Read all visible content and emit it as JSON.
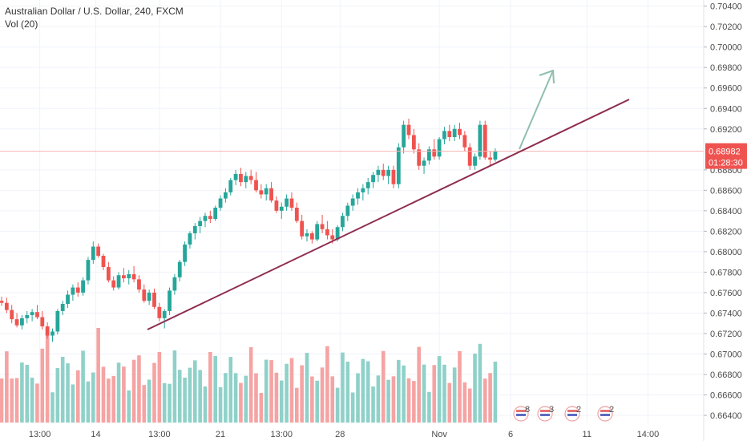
{
  "legend": {
    "symbol_title": "Australian Dollar / U.S. Dollar, 240, FXCM",
    "volume_title": "Vol (20)"
  },
  "price_tag": {
    "price": "0.68982",
    "countdown": "01:28:30",
    "color": "#ef5350"
  },
  "colors": {
    "up": "#26a69a",
    "down": "#ef5350",
    "vol_up": "#8fd1c9",
    "vol_down": "#f5a3a3",
    "trendline": "#8e2d4f",
    "arrow": "#8fbfae",
    "grid": "#f0f3fa",
    "price_line": "#f5b5b5"
  },
  "chart_data": {
    "type": "candlestick",
    "title": "Australian Dollar / U.S. Dollar, 240, FXCM",
    "volume_indicator": "Vol (20)",
    "y_axis": {
      "ticks": [
        "0.70400",
        "0.70200",
        "0.70000",
        "0.69800",
        "0.69600",
        "0.69400",
        "0.69200",
        "0.68800",
        "0.68600",
        "0.68400",
        "0.68200",
        "0.68000",
        "0.67800",
        "0.67600",
        "0.67400",
        "0.67200",
        "0.67000",
        "0.66800",
        "0.66600",
        "0.66400"
      ],
      "range": [
        0.6633,
        0.7046
      ],
      "position": "right"
    },
    "x_axis": {
      "ticks": [
        "13:00",
        "14",
        "13:00",
        "21",
        "13:00",
        "28",
        "Nov",
        "6",
        "11",
        "14:00"
      ],
      "bar_range": [
        0,
        140
      ]
    },
    "grid": true,
    "last_price": 0.68982,
    "candles": [
      [
        0.6752,
        0.6756,
        0.6747,
        0.675
      ],
      [
        0.675,
        0.6755,
        0.674,
        0.6743
      ],
      [
        0.6743,
        0.6748,
        0.673,
        0.6734
      ],
      [
        0.6734,
        0.674,
        0.6726,
        0.6728
      ],
      [
        0.6728,
        0.6738,
        0.6724,
        0.6735
      ],
      [
        0.6735,
        0.6742,
        0.673,
        0.6738
      ],
      [
        0.6738,
        0.6744,
        0.6732,
        0.6741
      ],
      [
        0.6741,
        0.6748,
        0.6734,
        0.6736
      ],
      [
        0.6736,
        0.6742,
        0.6724,
        0.6727
      ],
      [
        0.6727,
        0.6731,
        0.6715,
        0.6718
      ],
      [
        0.6718,
        0.6725,
        0.6712,
        0.6722
      ],
      [
        0.6722,
        0.6744,
        0.6719,
        0.6742
      ],
      [
        0.6742,
        0.6752,
        0.6738,
        0.6749
      ],
      [
        0.6749,
        0.6762,
        0.6745,
        0.6758
      ],
      [
        0.6758,
        0.6768,
        0.6752,
        0.6765
      ],
      [
        0.6765,
        0.677,
        0.6756,
        0.676
      ],
      [
        0.676,
        0.6775,
        0.6757,
        0.6772
      ],
      [
        0.6772,
        0.6795,
        0.6768,
        0.6792
      ],
      [
        0.6792,
        0.681,
        0.6788,
        0.6805
      ],
      [
        0.6805,
        0.6808,
        0.6794,
        0.6796
      ],
      [
        0.6796,
        0.6798,
        0.6782,
        0.6785
      ],
      [
        0.6785,
        0.679,
        0.677,
        0.6772
      ],
      [
        0.6772,
        0.6776,
        0.6762,
        0.6765
      ],
      [
        0.6765,
        0.678,
        0.6763,
        0.6777
      ],
      [
        0.6777,
        0.6784,
        0.677,
        0.6774
      ],
      [
        0.6774,
        0.6782,
        0.6768,
        0.6778
      ],
      [
        0.6778,
        0.6786,
        0.677,
        0.6773
      ],
      [
        0.6773,
        0.6777,
        0.676,
        0.6763
      ],
      [
        0.6763,
        0.6768,
        0.675,
        0.6752
      ],
      [
        0.6752,
        0.6763,
        0.6748,
        0.676
      ],
      [
        0.676,
        0.6764,
        0.6744,
        0.6746
      ],
      [
        0.6746,
        0.675,
        0.6732,
        0.6735
      ],
      [
        0.6735,
        0.6744,
        0.6725,
        0.6742
      ],
      [
        0.6742,
        0.6765,
        0.6738,
        0.6762
      ],
      [
        0.6762,
        0.6778,
        0.6758,
        0.6775
      ],
      [
        0.6775,
        0.6792,
        0.6771,
        0.679
      ],
      [
        0.679,
        0.681,
        0.6786,
        0.6807
      ],
      [
        0.6807,
        0.682,
        0.6803,
        0.6818
      ],
      [
        0.6818,
        0.6828,
        0.6812,
        0.6825
      ],
      [
        0.6825,
        0.6834,
        0.6818,
        0.683
      ],
      [
        0.683,
        0.6838,
        0.6824,
        0.6835
      ],
      [
        0.6835,
        0.684,
        0.6828,
        0.6832
      ],
      [
        0.6832,
        0.6845,
        0.683,
        0.6843
      ],
      [
        0.6843,
        0.6855,
        0.684,
        0.6852
      ],
      [
        0.6852,
        0.6862,
        0.6848,
        0.6858
      ],
      [
        0.6858,
        0.6872,
        0.6855,
        0.687
      ],
      [
        0.687,
        0.688,
        0.6865,
        0.6876
      ],
      [
        0.6876,
        0.6882,
        0.6864,
        0.6868
      ],
      [
        0.6868,
        0.6878,
        0.6862,
        0.6874
      ],
      [
        0.6874,
        0.688,
        0.6866,
        0.687
      ],
      [
        0.687,
        0.6878,
        0.6858,
        0.686
      ],
      [
        0.686,
        0.6866,
        0.6852,
        0.6856
      ],
      [
        0.6856,
        0.6866,
        0.685,
        0.6862
      ],
      [
        0.6862,
        0.6868,
        0.6848,
        0.685
      ],
      [
        0.685,
        0.6854,
        0.6838,
        0.684
      ],
      [
        0.684,
        0.6848,
        0.6832,
        0.6844
      ],
      [
        0.6844,
        0.6856,
        0.684,
        0.6852
      ],
      [
        0.6852,
        0.6858,
        0.684,
        0.6843
      ],
      [
        0.6843,
        0.6848,
        0.6828,
        0.683
      ],
      [
        0.683,
        0.6836,
        0.6812,
        0.6815
      ],
      [
        0.6815,
        0.6822,
        0.681,
        0.6818
      ],
      [
        0.6818,
        0.682,
        0.6808,
        0.6812
      ],
      [
        0.6812,
        0.683,
        0.681,
        0.6827
      ],
      [
        0.6827,
        0.6836,
        0.6818,
        0.6822
      ],
      [
        0.6822,
        0.683,
        0.6812,
        0.6816
      ],
      [
        0.6816,
        0.6822,
        0.6808,
        0.6812
      ],
      [
        0.6812,
        0.6826,
        0.681,
        0.6824
      ],
      [
        0.6824,
        0.6838,
        0.682,
        0.6835
      ],
      [
        0.6835,
        0.6848,
        0.683,
        0.6845
      ],
      [
        0.6845,
        0.6856,
        0.684,
        0.6852
      ],
      [
        0.6852,
        0.6862,
        0.6846,
        0.6858
      ],
      [
        0.6858,
        0.6866,
        0.685,
        0.6862
      ],
      [
        0.6862,
        0.6872,
        0.6856,
        0.6868
      ],
      [
        0.6868,
        0.6878,
        0.6862,
        0.6875
      ],
      [
        0.6875,
        0.6884,
        0.6868,
        0.688
      ],
      [
        0.688,
        0.6886,
        0.687,
        0.6874
      ],
      [
        0.6874,
        0.6884,
        0.6866,
        0.688
      ],
      [
        0.688,
        0.6884,
        0.6862,
        0.6866
      ],
      [
        0.6866,
        0.6906,
        0.6862,
        0.6902
      ],
      [
        0.6902,
        0.6928,
        0.6896,
        0.6924
      ],
      [
        0.6924,
        0.693,
        0.691,
        0.6914
      ],
      [
        0.6914,
        0.692,
        0.6896,
        0.69
      ],
      [
        0.69,
        0.6906,
        0.688,
        0.6884
      ],
      [
        0.6884,
        0.6892,
        0.6876,
        0.6889
      ],
      [
        0.6889,
        0.6903,
        0.6885,
        0.69
      ],
      [
        0.69,
        0.691,
        0.689,
        0.6893
      ],
      [
        0.6893,
        0.6912,
        0.689,
        0.691
      ],
      [
        0.691,
        0.6922,
        0.6905,
        0.6918
      ],
      [
        0.6918,
        0.6924,
        0.6908,
        0.6912
      ],
      [
        0.6912,
        0.6924,
        0.6908,
        0.692
      ],
      [
        0.692,
        0.6926,
        0.691,
        0.6914
      ],
      [
        0.6914,
        0.6918,
        0.6898,
        0.6902
      ],
      [
        0.6902,
        0.6906,
        0.688,
        0.6884
      ],
      [
        0.6884,
        0.6896,
        0.688,
        0.6893
      ],
      [
        0.6893,
        0.6928,
        0.689,
        0.6924
      ],
      [
        0.6924,
        0.6928,
        0.689,
        0.6892
      ],
      [
        0.6892,
        0.6898,
        0.6884,
        0.689
      ],
      [
        0.689,
        0.6901,
        0.6888,
        0.6898
      ]
    ]
  }
}
